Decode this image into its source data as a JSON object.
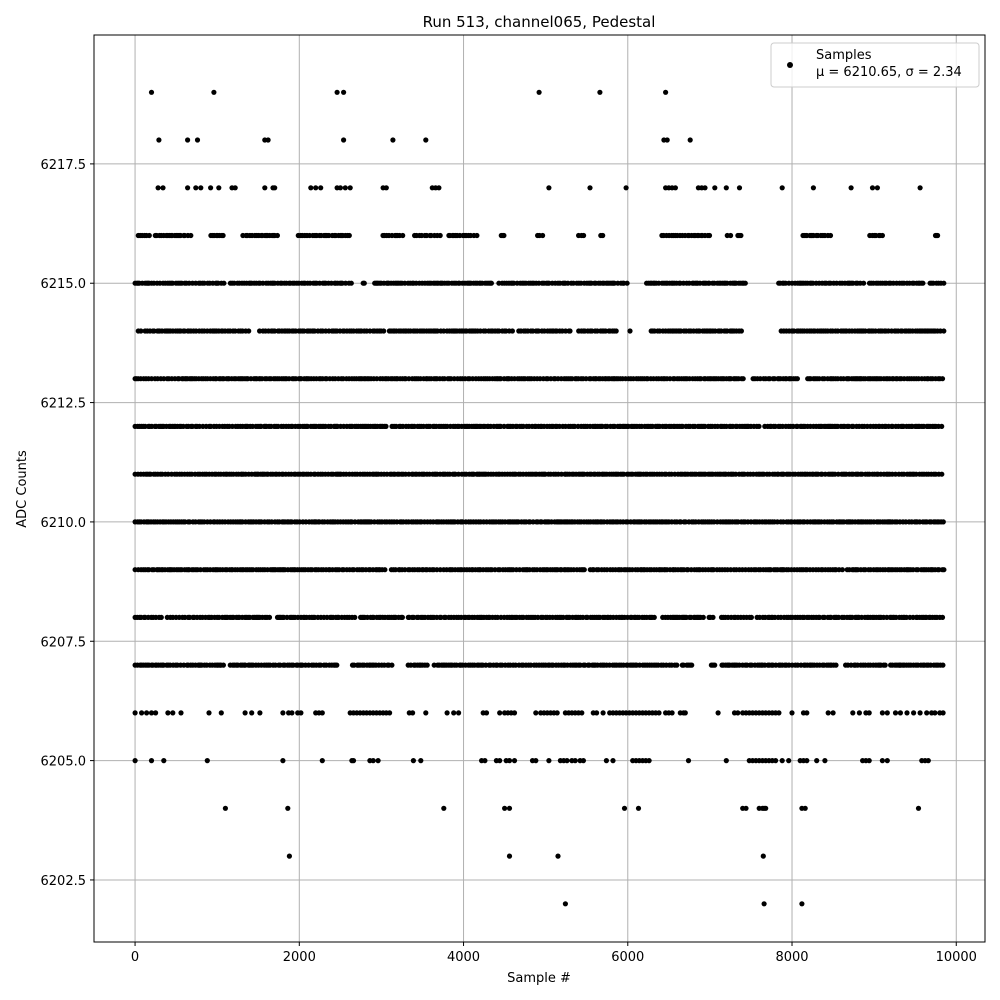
{
  "chart_data": {
    "type": "scatter",
    "title": "Run 513, channel065, Pedestal",
    "xlabel": "Sample #",
    "ylabel": "ADC Counts",
    "xlim": [
      -500,
      10350
    ],
    "ylim": [
      6201.2,
      6220.2
    ],
    "xticks": [
      0,
      2000,
      4000,
      6000,
      8000,
      10000
    ],
    "xtick_labels": [
      "0",
      "2000",
      "4000",
      "6000",
      "8000",
      "10000"
    ],
    "yticks": [
      6202.5,
      6205.0,
      6207.5,
      6210.0,
      6212.5,
      6215.0,
      6217.5
    ],
    "ytick_labels": [
      "6202.5",
      "6205.0",
      "6207.5",
      "6210.0",
      "6212.5",
      "6215.0",
      "6217.5"
    ],
    "grid": true,
    "legend": {
      "placement": "top-right",
      "label": "Samples",
      "stats": "μ = 6210.65, σ = 2.34"
    },
    "series": [
      {
        "name": "Samples",
        "color": "#000000",
        "x_range": [
          0,
          9850
        ],
        "levels": [
          {
            "y": 6202,
            "x": [
              5240,
              7660,
              8120
            ]
          },
          {
            "y": 6203,
            "x": [
              1880,
              4560,
              5150,
              7650
            ]
          },
          {
            "y": 6204,
            "x": [
              1100,
              1860,
              3760,
              4500,
              4560,
              5960,
              6130,
              7400,
              7440,
              7600,
              7640,
              7660,
              7680,
              8120,
              8160,
              9540
            ]
          },
          {
            "y": 6205,
            "x": [
              0,
              200,
              350,
              880,
              1800,
              2280,
              2640,
              2660,
              2860,
              2900,
              2960,
              3390,
              3480,
              4220,
              4260,
              4400,
              4440,
              4520,
              4560,
              4620,
              4840,
              4880,
              5040,
              5180,
              5220,
              5260,
              5320,
              5360,
              5420,
              5460,
              5740,
              5820,
              6060,
              6100,
              6140,
              6180,
              6220,
              6260,
              6740,
              7200,
              7480,
              7520,
              7560,
              7600,
              7640,
              7680,
              7720,
              7760,
              7800,
              7880,
              7960,
              8100,
              8140,
              8180,
              8300,
              8400,
              8860,
              8900,
              8940,
              9100,
              9160,
              9580,
              9620,
              9660
            ]
          },
          {
            "y": 6206,
            "x": [
              0,
              80,
              140,
              200,
              250,
              400,
              460,
              560,
              900,
              1050,
              1340,
              1420,
              1520,
              1800,
              1870,
              1910,
              1980,
              2020,
              2200,
              2240,
              2280,
              2620,
              2660,
              2700,
              2740,
              2780,
              2820,
              2860,
              2900,
              2940,
              2980,
              3020,
              3060,
              3100,
              3340,
              3380,
              3540,
              3800,
              3880,
              3940,
              4240,
              4280,
              4440,
              4500,
              4540,
              4580,
              4620,
              4880,
              4940,
              4980,
              5020,
              5060,
              5100,
              5140,
              5240,
              5280,
              5320,
              5360,
              5400,
              5440,
              5580,
              5620,
              5700,
              5780,
              5820,
              5860,
              5900,
              5940,
              5980,
              6020,
              6060,
              6100,
              6140,
              6180,
              6220,
              6260,
              6300,
              6340,
              6380,
              6460,
              6500,
              6540,
              6640,
              6680,
              6700,
              7100,
              7300,
              7340,
              7400,
              7440,
              7480,
              7520,
              7560,
              7600,
              7640,
              7680,
              7720,
              7760,
              7800,
              7840,
              8000,
              8140,
              8180,
              8440,
              8500,
              8740,
              8820,
              8900,
              8940,
              9100,
              9160,
              9260,
              9320,
              9400,
              9480,
              9560,
              9640,
              9700,
              9740,
              9800,
              9840
            ]
          },
          {
            "y": 6217,
            "x": [
              280,
              340,
              640,
              740,
              800,
              920,
              1020,
              1180,
              1220,
              1580,
              1680,
              1700,
              2140,
              2200,
              2260,
              2460,
              2500,
              2560,
              2620,
              3020,
              3060,
              3620,
              3660,
              3700,
              5040,
              5540,
              5980,
              6460,
              6500,
              6540,
              6580,
              6860,
              6900,
              6940,
              7060,
              7200,
              7360,
              7880,
              8260,
              8720,
              8980,
              9040,
              9560
            ]
          },
          {
            "y": 6218,
            "x": [
              290,
              640,
              760,
              1580,
              1620,
              2540,
              3140,
              3540,
              6440,
              6480,
              6760
            ]
          },
          {
            "y": 6219,
            "x": [
              200,
              960,
              2460,
              2540,
              4920,
              5660,
              6460
            ]
          }
        ],
        "dense_rows": [
          {
            "y": 6207,
            "x_start": 0,
            "x_end": 9850,
            "gaps": [
              [
                1080,
                1140
              ],
              [
                2460,
                2620
              ],
              [
                3140,
                3300
              ],
              [
                3580,
                3640
              ],
              [
                6600,
                6660
              ],
              [
                6800,
                7000
              ],
              [
                7080,
                7140
              ],
              [
                8560,
                8620
              ],
              [
                9140,
                9200
              ]
            ]
          },
          {
            "y": 6208,
            "x_start": 0,
            "x_end": 9850,
            "gaps": [
              [
                340,
                380
              ],
              [
                1640,
                1700
              ],
              [
                2680,
                2720
              ],
              [
                3260,
                3320
              ],
              [
                6360,
                6420
              ],
              [
                6940,
                6980
              ],
              [
                7060,
                7100
              ],
              [
                7520,
                7560
              ]
            ]
          },
          {
            "y": 6209,
            "x_start": 0,
            "x_end": 9850,
            "gaps": [
              [
                3060,
                3100
              ],
              [
                5500,
                5540
              ],
              [
                8620,
                8660
              ]
            ]
          },
          {
            "y": 6210,
            "x_start": 0,
            "x_end": 9850,
            "gaps": []
          },
          {
            "y": 6211,
            "x_start": 0,
            "x_end": 9850,
            "gaps": []
          },
          {
            "y": 6212,
            "x_start": 0,
            "x_end": 9850,
            "gaps": [
              [
                3080,
                3120
              ],
              [
                7600,
                7660
              ]
            ]
          },
          {
            "y": 6213,
            "x_start": 0,
            "x_end": 9850,
            "gaps": [
              [
                7420,
                7520
              ],
              [
                8080,
                8180
              ]
            ]
          },
          {
            "y": 6214,
            "x_start": 40,
            "x_end": 9850,
            "gaps": [
              [
                80,
                120
              ],
              [
                1400,
                1500
              ],
              [
                3040,
                3080
              ],
              [
                4600,
                4660
              ],
              [
                5300,
                5380
              ],
              [
                5860,
                6000
              ],
              [
                6040,
                6280
              ],
              [
                7400,
                7700
              ],
              [
                7720,
                7860
              ]
            ]
          },
          {
            "y": 6215,
            "x_start": 0,
            "x_end": 9850,
            "gaps": [
              [
                1100,
                1160
              ],
              [
                2660,
                2760
              ],
              [
                2800,
                2900
              ],
              [
                4360,
                4420
              ],
              [
                6000,
                6220
              ],
              [
                7460,
                7800
              ],
              [
                8900,
                8940
              ],
              [
                9600,
                9660
              ]
            ]
          },
          {
            "y": 6216,
            "x_start": 40,
            "x_end": 9780,
            "gaps": [
              [
                200,
                240
              ],
              [
                700,
                900
              ],
              [
                1080,
                1300
              ],
              [
                1760,
                1980
              ],
              [
                2640,
                3000
              ],
              [
                3280,
                3400
              ],
              [
                3720,
                3800
              ],
              [
                4200,
                4440
              ],
              [
                4500,
                4900
              ],
              [
                4980,
                5400
              ],
              [
                5480,
                5640
              ],
              [
                5700,
                6380
              ],
              [
                7000,
                7180
              ],
              [
                7260,
                7340
              ],
              [
                7400,
                8120
              ],
              [
                8480,
                8940
              ],
              [
                9120,
                9380
              ],
              [
                9400,
                9740
              ]
            ]
          }
        ]
      }
    ]
  }
}
